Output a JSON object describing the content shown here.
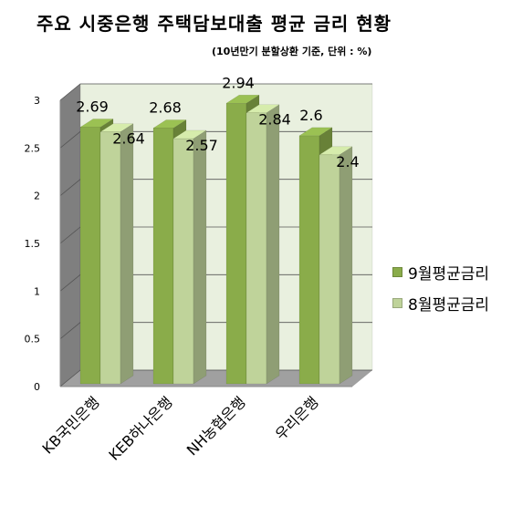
{
  "title": "주요 시중은행 주택담보대출 평균 금리 현황",
  "subtitle": "(10년만기 분할상환 기준, 단위 : %)",
  "colors": {
    "series1": "#8aac4a",
    "series2": "#bfd39a",
    "wall": "#e9f0df",
    "side_wall": "#7f7f7f",
    "floor": "#a0a0a0"
  },
  "chart_data": {
    "type": "bar",
    "title": "주요 시중은행 주택담보대출 평균 금리 현황",
    "subtitle": "(10년만기 분할상환 기준, 단위 : %)",
    "categories": [
      "KB국민은행",
      "KEB하나은행",
      "NH농협은행",
      "우리은행"
    ],
    "series": [
      {
        "name": "9월평균금리",
        "values": [
          2.69,
          2.68,
          2.94,
          2.6
        ],
        "labels": [
          "2.69",
          "2.68",
          "2.94",
          "2.6"
        ]
      },
      {
        "name": "8월평균금리",
        "values": [
          2.64,
          2.57,
          2.84,
          2.4
        ],
        "labels": [
          "2.64",
          "2.57",
          "2.84",
          "2.4"
        ]
      }
    ],
    "ylim": [
      0,
      3
    ],
    "yticks": [
      0,
      0.5,
      1,
      1.5,
      2,
      2.5,
      3
    ],
    "ytick_labels": [
      "0",
      "0.5",
      "1",
      "1.5",
      "2",
      "2.5",
      "3"
    ],
    "xlabel": "",
    "ylabel": "",
    "grid": true,
    "legend": "right"
  }
}
